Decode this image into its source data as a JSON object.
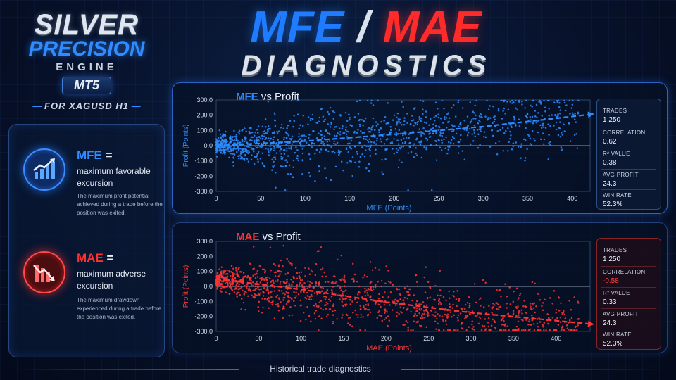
{
  "brand": {
    "line1": "SILVER",
    "line2": "PRECISION",
    "line3": "ENGINE",
    "line4": "MT5",
    "line5": "FOR XAGUSD H1",
    "deco": "— —",
    "accent_color": "#2f8bff"
  },
  "title": {
    "mfe": "MFE",
    "slash": " / ",
    "mae": "MAE",
    "subtitle": "DIAGNOSTICS"
  },
  "definitions": {
    "mfe": {
      "icon": "chart-up-arrow-icon",
      "acronym": "MFE",
      "equals": " =",
      "long": "maximum favorable excursion",
      "description": "The maximum profit potential achieved during a trade before the position was exited.",
      "color": "#2f8bff"
    },
    "mae": {
      "icon": "chart-down-arrow-icon",
      "acronym": "MAE",
      "equals": " =",
      "long": "maximum adverse excursion",
      "description": "The maximum drawdown experienced during a trade before the position was exited.",
      "color": "#ff3030"
    }
  },
  "charts": {
    "mfe": {
      "stats": [
        {
          "label": "TRADES",
          "value": "1 250"
        },
        {
          "label": "CORRELATION",
          "value": "0.62"
        },
        {
          "label": "R² VALUE",
          "value": "0.38"
        },
        {
          "label": "AVG PROFIT",
          "value": "24.3"
        },
        {
          "label": "WIN RATE",
          "value": "52.3%"
        }
      ]
    },
    "mae": {
      "stats": [
        {
          "label": "TRADES",
          "value": "1 250"
        },
        {
          "label": "CORRELATION",
          "value": "-0.58"
        },
        {
          "label": "R² VALUE",
          "value": "0.33"
        },
        {
          "label": "AVG PROFIT",
          "value": "24.3"
        },
        {
          "label": "WIN RATE",
          "value": "52.3%"
        }
      ]
    }
  },
  "chart_data": [
    {
      "type": "scatter",
      "title_series": "MFE",
      "title_rest": " vs Profit",
      "xlabel": "MFE (Points)",
      "ylabel": "Profit (Points)",
      "xlim": [
        0,
        420
      ],
      "ylim": [
        -300,
        300
      ],
      "xticks": [
        0,
        50,
        100,
        150,
        200,
        250,
        300,
        350,
        400
      ],
      "yticks": [
        -300,
        -200,
        -100,
        0,
        100,
        200,
        300
      ],
      "ytick_labels": [
        "-300.0",
        "-200.0",
        "-100.0",
        "0.0",
        "100.0",
        "200.0",
        "300.0"
      ],
      "color": "#2b8cff",
      "n_points": 1250,
      "trend": {
        "style": "dashed-arrow",
        "x": [
          0,
          100,
          200,
          300,
          420
        ],
        "y": [
          0,
          30,
          75,
          125,
          205
        ]
      },
      "grid": "horizontal-zero-line"
    },
    {
      "type": "scatter",
      "title_series": "MAE",
      "title_rest": " vs Profit",
      "xlabel": "MAE (Points)",
      "ylabel": "Profit (Points)",
      "xlim": [
        0,
        440
      ],
      "ylim": [
        -300,
        300
      ],
      "xticks": [
        0,
        50,
        100,
        150,
        200,
        250,
        300,
        350,
        400
      ],
      "yticks": [
        -300,
        -200,
        -100,
        0,
        100,
        200,
        300
      ],
      "ytick_labels": [
        "-300.0",
        "-200.0",
        "-100.0",
        "0.0",
        "100.0",
        "200.0",
        "300.0"
      ],
      "color": "#ff3333",
      "n_points": 1250,
      "trend": {
        "style": "dashed-arrow",
        "x": [
          0,
          100,
          200,
          300,
          440
        ],
        "y": [
          50,
          -20,
          -105,
          -175,
          -250
        ]
      },
      "grid": "horizontal-zero-line"
    }
  ],
  "footer": {
    "text": "Historical trade diagnostics"
  }
}
